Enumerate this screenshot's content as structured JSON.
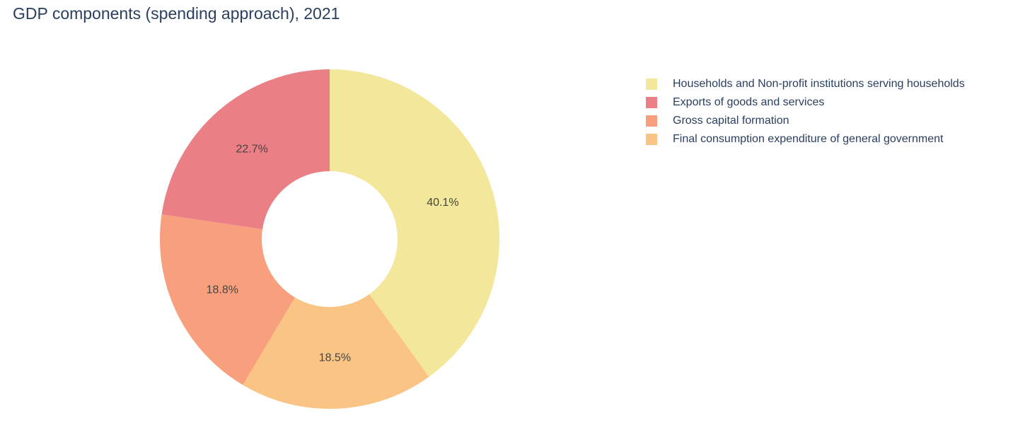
{
  "chart_data": {
    "type": "pie",
    "title": "GDP components (spending approach), 2021",
    "hole": 0.4,
    "direction": "clockwise",
    "rotation_start": "top",
    "legend_position": "right",
    "slices": [
      {
        "name": "Households and Non-profit institutions serving households",
        "value": 40.1,
        "label": "40.1%",
        "color": "#f3e79b"
      },
      {
        "name": "Final consumption expenditure of general government",
        "value": 18.5,
        "label": "18.5%",
        "color": "#fac484"
      },
      {
        "name": "Gross capital formation",
        "value": 18.8,
        "label": "18.8%",
        "color": "#f8a07e"
      },
      {
        "name": "Exports of goods and services",
        "value": 22.7,
        "label": "22.7%",
        "color": "#eb7f86"
      }
    ],
    "legend": [
      {
        "name": "Households and Non-profit institutions serving households",
        "color": "#f3e79b"
      },
      {
        "name": "Exports of goods and services",
        "color": "#eb7f86"
      },
      {
        "name": "Gross capital formation",
        "color": "#f8a07e"
      },
      {
        "name": "Final consumption expenditure of general government",
        "color": "#fac484"
      }
    ]
  }
}
